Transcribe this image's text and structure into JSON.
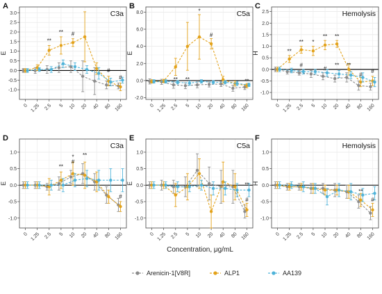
{
  "figure": {
    "x_axis_label": "Concentration, μg/mL",
    "legend": [
      {
        "name": "Arenicin-1[V8R]",
        "color": "#8c8c8c"
      },
      {
        "name": "ALP1",
        "color": "#e3a21a"
      },
      {
        "name": "AA139",
        "color": "#4fb3d9"
      }
    ]
  },
  "chart_data": [
    {
      "panel": "A",
      "title": "C3a",
      "ylabel": "E",
      "type": "line",
      "x": [
        "0",
        "1.25",
        "2.5",
        "5",
        "10",
        "20",
        "40",
        "80",
        "160"
      ],
      "ylim": [
        -1.5,
        3.3
      ],
      "yticks": [
        -1.0,
        -0.5,
        0.0,
        0.5,
        1.0,
        1.5,
        2.0,
        2.5,
        3.0
      ],
      "series": [
        {
          "name": "Arenicin-1[V8R]",
          "values": [
            0.0,
            0.0,
            0.05,
            0.15,
            0.2,
            -0.3,
            -0.55,
            -0.75,
            -0.8
          ],
          "err": [
            0.1,
            0.15,
            0.2,
            0.25,
            0.3,
            0.8,
            0.7,
            0.2,
            0.15
          ]
        },
        {
          "name": "ALP1",
          "values": [
            0.0,
            0.15,
            1.05,
            1.3,
            1.45,
            1.75,
            0.1,
            -0.55,
            -0.85
          ],
          "err": [
            0.1,
            0.15,
            0.25,
            0.45,
            0.2,
            1.3,
            0.3,
            0.25,
            0.2
          ]
        },
        {
          "name": "AA139",
          "values": [
            0.0,
            0.05,
            0.05,
            0.35,
            0.2,
            0.05,
            -0.15,
            -0.6,
            -0.5
          ],
          "err": [
            0.1,
            0.1,
            0.15,
            0.2,
            0.2,
            0.2,
            0.3,
            0.2,
            0.15
          ]
        }
      ],
      "annotations": [
        {
          "x": "2.5",
          "y": 1.45,
          "text": "**"
        },
        {
          "x": "5",
          "y": 1.9,
          "text": "**"
        },
        {
          "x": "10",
          "y": 1.8,
          "text": "#"
        },
        {
          "x": "80",
          "y": -0.1,
          "text": "#"
        },
        {
          "x": "160",
          "y": -0.45,
          "text": "#"
        }
      ]
    },
    {
      "panel": "B",
      "title": "C5a",
      "ylabel": "E",
      "type": "line",
      "x": [
        "0",
        "1.25",
        "2.5",
        "5",
        "10",
        "20",
        "40",
        "80",
        "160"
      ],
      "ylim": [
        -2.2,
        8.6
      ],
      "yticks": [
        -2.0,
        0.0,
        2.0,
        4.0,
        6.0,
        8.0
      ],
      "series": [
        {
          "name": "Arenicin-1[V8R]",
          "values": [
            -0.1,
            -0.15,
            -0.5,
            -0.6,
            -0.5,
            -0.45,
            -0.4,
            -0.9,
            -0.75
          ],
          "err": [
            0.3,
            0.3,
            0.4,
            0.35,
            0.35,
            0.3,
            0.3,
            0.35,
            0.3
          ]
        },
        {
          "name": "ALP1",
          "values": [
            -0.1,
            -0.05,
            1.6,
            4.0,
            5.1,
            4.3,
            0.1,
            -0.35,
            -0.6
          ],
          "err": [
            0.2,
            0.2,
            1.0,
            2.8,
            2.6,
            0.6,
            0.4,
            0.3,
            0.25
          ]
        },
        {
          "name": "AA139",
          "values": [
            -0.1,
            -0.1,
            -0.2,
            -0.3,
            -0.1,
            -0.2,
            -0.2,
            -0.35,
            -0.5
          ],
          "err": [
            0.2,
            0.2,
            0.2,
            0.25,
            0.2,
            0.2,
            0.2,
            0.25,
            0.2
          ]
        }
      ],
      "annotations": [
        {
          "x": "10",
          "y": 7.9,
          "text": "*"
        },
        {
          "x": "20",
          "y": 5.1,
          "text": "#"
        },
        {
          "x": "2.5",
          "y": -0.1,
          "text": "**"
        },
        {
          "x": "5",
          "y": -0.1,
          "text": "**"
        },
        {
          "x": "160",
          "y": -0.3,
          "text": "**"
        }
      ]
    },
    {
      "panel": "C",
      "title": "Hemolysis",
      "ylabel": "H",
      "type": "line",
      "x": [
        "0",
        "1.25",
        "2.5",
        "5",
        "10",
        "20",
        "40",
        "80",
        "160"
      ],
      "ylim": [
        -1.3,
        2.7
      ],
      "yticks": [
        -1.0,
        -0.5,
        0.0,
        0.5,
        1.0,
        1.5,
        2.0,
        2.5
      ],
      "series": [
        {
          "name": "Arenicin-1[V8R]",
          "values": [
            0.0,
            -0.1,
            -0.15,
            -0.2,
            -0.3,
            -0.4,
            -0.35,
            -0.7,
            -0.75
          ],
          "err": [
            0.1,
            0.1,
            0.1,
            0.15,
            0.15,
            0.15,
            0.2,
            0.2,
            0.15
          ]
        },
        {
          "name": "ALP1",
          "values": [
            0.0,
            0.45,
            0.85,
            0.8,
            1.05,
            1.1,
            0.0,
            -0.55,
            -0.5
          ],
          "err": [
            0.1,
            0.15,
            0.15,
            0.2,
            0.2,
            0.15,
            0.25,
            0.2,
            0.2
          ]
        },
        {
          "name": "AA139",
          "values": [
            0.0,
            -0.05,
            -0.1,
            -0.1,
            -0.15,
            -0.2,
            -0.25,
            -0.35,
            -0.55
          ],
          "err": [
            0.1,
            0.1,
            0.1,
            0.1,
            0.15,
            0.15,
            0.15,
            0.2,
            0.2
          ]
        }
      ],
      "annotations": [
        {
          "x": "1.25",
          "y": 0.7,
          "text": "**"
        },
        {
          "x": "2.5",
          "y": 1.1,
          "text": "**"
        },
        {
          "x": "5",
          "y": 1.1,
          "text": "*"
        },
        {
          "x": "10",
          "y": 1.35,
          "text": "**"
        },
        {
          "x": "20",
          "y": 1.35,
          "text": "**"
        },
        {
          "x": "40",
          "y": 0.1,
          "text": "**"
        },
        {
          "x": "2.5",
          "y": 0.1,
          "text": "#"
        },
        {
          "x": "10",
          "y": -0.05,
          "text": "#"
        },
        {
          "x": "20",
          "y": 0.1,
          "text": "**"
        },
        {
          "x": "80",
          "y": -0.3,
          "text": "#"
        },
        {
          "x": "160",
          "y": -0.15,
          "text": "#"
        }
      ]
    },
    {
      "panel": "D",
      "title": "C3a",
      "ylabel": "E",
      "type": "line",
      "x": [
        "0",
        "1.25",
        "2.5",
        "5",
        "10",
        "20",
        "40",
        "80",
        "160"
      ],
      "ylim": [
        -1.3,
        1.4
      ],
      "yticks": [
        -1.0,
        -0.5,
        0.0,
        0.5,
        1.0
      ],
      "series": [
        {
          "name": "Arenicin-1[V8R]",
          "values": [
            0.0,
            0.0,
            -0.05,
            0.05,
            0.25,
            0.35,
            0.1,
            -0.3,
            -0.6
          ],
          "err": [
            0.1,
            0.1,
            0.1,
            0.2,
            0.2,
            0.3,
            0.25,
            0.25,
            0.2
          ]
        },
        {
          "name": "ALP1",
          "values": [
            0.0,
            0.0,
            -0.05,
            0.15,
            0.35,
            0.3,
            0.1,
            -0.35,
            -0.65
          ],
          "err": [
            0.1,
            0.1,
            0.25,
            0.25,
            0.35,
            0.4,
            0.3,
            0.2,
            0.15
          ]
        },
        {
          "name": "AA139",
          "values": [
            0.0,
            0.0,
            0.0,
            0.0,
            0.15,
            0.2,
            0.15,
            0.15,
            0.15
          ],
          "err": [
            0.1,
            0.1,
            0.15,
            0.2,
            0.2,
            0.25,
            0.3,
            0.35,
            0.35
          ]
        }
      ],
      "annotations": [
        {
          "x": "5",
          "y": 0.5,
          "text": "**"
        },
        {
          "x": "10",
          "y": 0.8,
          "text": "*"
        },
        {
          "x": "10",
          "y": 0.65,
          "text": "#"
        },
        {
          "x": "20",
          "y": 0.85,
          "text": "**"
        },
        {
          "x": "160",
          "y": -0.4,
          "text": "#"
        }
      ]
    },
    {
      "panel": "E",
      "title": "C5a",
      "ylabel": "E",
      "type": "line",
      "x": [
        "0",
        "1.25",
        "2.5",
        "5",
        "10",
        "20",
        "40",
        "80",
        "160"
      ],
      "ylim": [
        -1.3,
        1.4
      ],
      "yticks": [
        -1.0,
        -0.5,
        0.0,
        0.5,
        1.0
      ],
      "series": [
        {
          "name": "Arenicin-1[V8R]",
          "values": [
            0.0,
            0.0,
            -0.05,
            -0.05,
            0.45,
            0.05,
            -0.05,
            -0.05,
            -0.8
          ],
          "err": [
            0.1,
            0.15,
            0.2,
            0.3,
            0.5,
            0.5,
            0.5,
            0.5,
            0.2
          ]
        },
        {
          "name": "ALP1",
          "values": [
            0.0,
            0.0,
            -0.3,
            -0.05,
            0.35,
            -0.8,
            0.1,
            -0.05,
            -0.75
          ],
          "err": [
            0.1,
            0.1,
            0.35,
            0.4,
            0.45,
            0.5,
            0.6,
            0.4,
            0.2
          ]
        },
        {
          "name": "AA139",
          "values": [
            0.0,
            0.0,
            -0.05,
            -0.05,
            0.0,
            -0.1,
            -0.1,
            -0.15,
            -0.15
          ],
          "err": [
            0.1,
            0.1,
            0.15,
            0.15,
            0.15,
            0.2,
            0.2,
            0.2,
            0.2
          ]
        }
      ],
      "annotations": [
        {
          "x": "160",
          "y": -0.05,
          "text": "**"
        },
        {
          "x": "160",
          "y": -0.5,
          "text": "#"
        }
      ]
    },
    {
      "panel": "F",
      "title": "Hemolysis",
      "ylabel": "H",
      "type": "line",
      "x": [
        "0",
        "1.25",
        "2.5",
        "5",
        "10",
        "20",
        "40",
        "80",
        "160"
      ],
      "ylim": [
        -1.3,
        1.4
      ],
      "yticks": [
        -1.0,
        -0.5,
        0.0,
        0.5,
        1.0
      ],
      "series": [
        {
          "name": "Arenicin-1[V8R]",
          "values": [
            0.0,
            -0.05,
            -0.05,
            -0.1,
            -0.1,
            -0.15,
            -0.2,
            -0.5,
            -0.85
          ],
          "err": [
            0.1,
            0.1,
            0.1,
            0.15,
            0.15,
            0.2,
            0.2,
            0.2,
            0.2
          ]
        },
        {
          "name": "ALP1",
          "values": [
            0.0,
            -0.05,
            -0.05,
            -0.1,
            -0.15,
            -0.15,
            -0.2,
            -0.45,
            -0.75
          ],
          "err": [
            0.1,
            0.1,
            0.1,
            0.15,
            0.15,
            0.15,
            0.2,
            0.2,
            0.2
          ]
        },
        {
          "name": "AA139",
          "values": [
            0.0,
            0.0,
            -0.05,
            -0.1,
            -0.35,
            -0.15,
            -0.2,
            -0.3,
            -0.25
          ],
          "err": [
            0.1,
            0.1,
            0.15,
            0.15,
            0.25,
            0.2,
            0.25,
            0.2,
            0.2
          ]
        }
      ],
      "annotations": [
        {
          "x": "80",
          "y": -0.25,
          "text": "**"
        },
        {
          "x": "160",
          "y": -0.5,
          "text": "#"
        }
      ]
    }
  ]
}
